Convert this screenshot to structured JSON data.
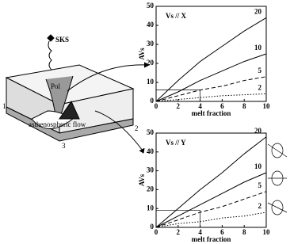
{
  "diagram": {
    "wave": "SKS",
    "pole": "Pol",
    "flow": "asthenospheric flow",
    "corners": [
      "1",
      "2",
      "3"
    ]
  },
  "chart_data": [
    {
      "type": "line",
      "title": "Vs // X",
      "xlabel": "melt fraction",
      "ylabel": "AVs",
      "x": [
        0,
        2,
        4,
        6,
        8,
        10
      ],
      "series": [
        {
          "name": "20",
          "color": "#000",
          "style": "solid",
          "values": [
            0,
            11,
            21,
            29,
            37,
            44
          ]
        },
        {
          "name": "10",
          "color": "#000",
          "style": "solid",
          "values": [
            0,
            5,
            11,
            16,
            21,
            25
          ]
        },
        {
          "name": "5",
          "color": "#000",
          "style": "dashed",
          "values": [
            0,
            3,
            6,
            8,
            11,
            13
          ]
        },
        {
          "name": "2",
          "color": "#000",
          "style": "dotted",
          "values": [
            0,
            1,
            2,
            3,
            3.5,
            4
          ]
        }
      ],
      "reference": {
        "x": 4,
        "y": 6
      },
      "xlim": [
        0,
        10
      ],
      "ylim": [
        0,
        50
      ],
      "xticks": [
        0,
        2,
        4,
        6,
        8,
        10
      ],
      "yticks": [
        0,
        10,
        20,
        30,
        40,
        50
      ]
    },
    {
      "type": "line",
      "title": "Vs // Y",
      "xlabel": "melt fraction",
      "ylabel": "AVs",
      "x": [
        0,
        2,
        4,
        6,
        8,
        10
      ],
      "series": [
        {
          "name": "20",
          "color": "#000",
          "style": "solid",
          "values": [
            0,
            10,
            20,
            29,
            39,
            48
          ]
        },
        {
          "name": "10",
          "color": "#000",
          "style": "solid",
          "values": [
            0,
            6,
            12,
            18,
            24,
            29
          ]
        },
        {
          "name": "5",
          "color": "#000",
          "style": "dashed",
          "values": [
            0,
            4,
            8,
            11,
            15,
            19
          ]
        },
        {
          "name": "2",
          "color": "#000",
          "style": "dotted",
          "values": [
            0,
            2,
            3,
            5,
            6,
            8
          ]
        }
      ],
      "reference": {
        "x": 4,
        "y": 9
      },
      "xlim": [
        0,
        10
      ],
      "ylim": [
        0,
        50
      ],
      "xticks": [
        0,
        2,
        4,
        6,
        8,
        10
      ],
      "yticks": [
        0,
        10,
        20,
        30,
        40,
        50
      ]
    }
  ]
}
